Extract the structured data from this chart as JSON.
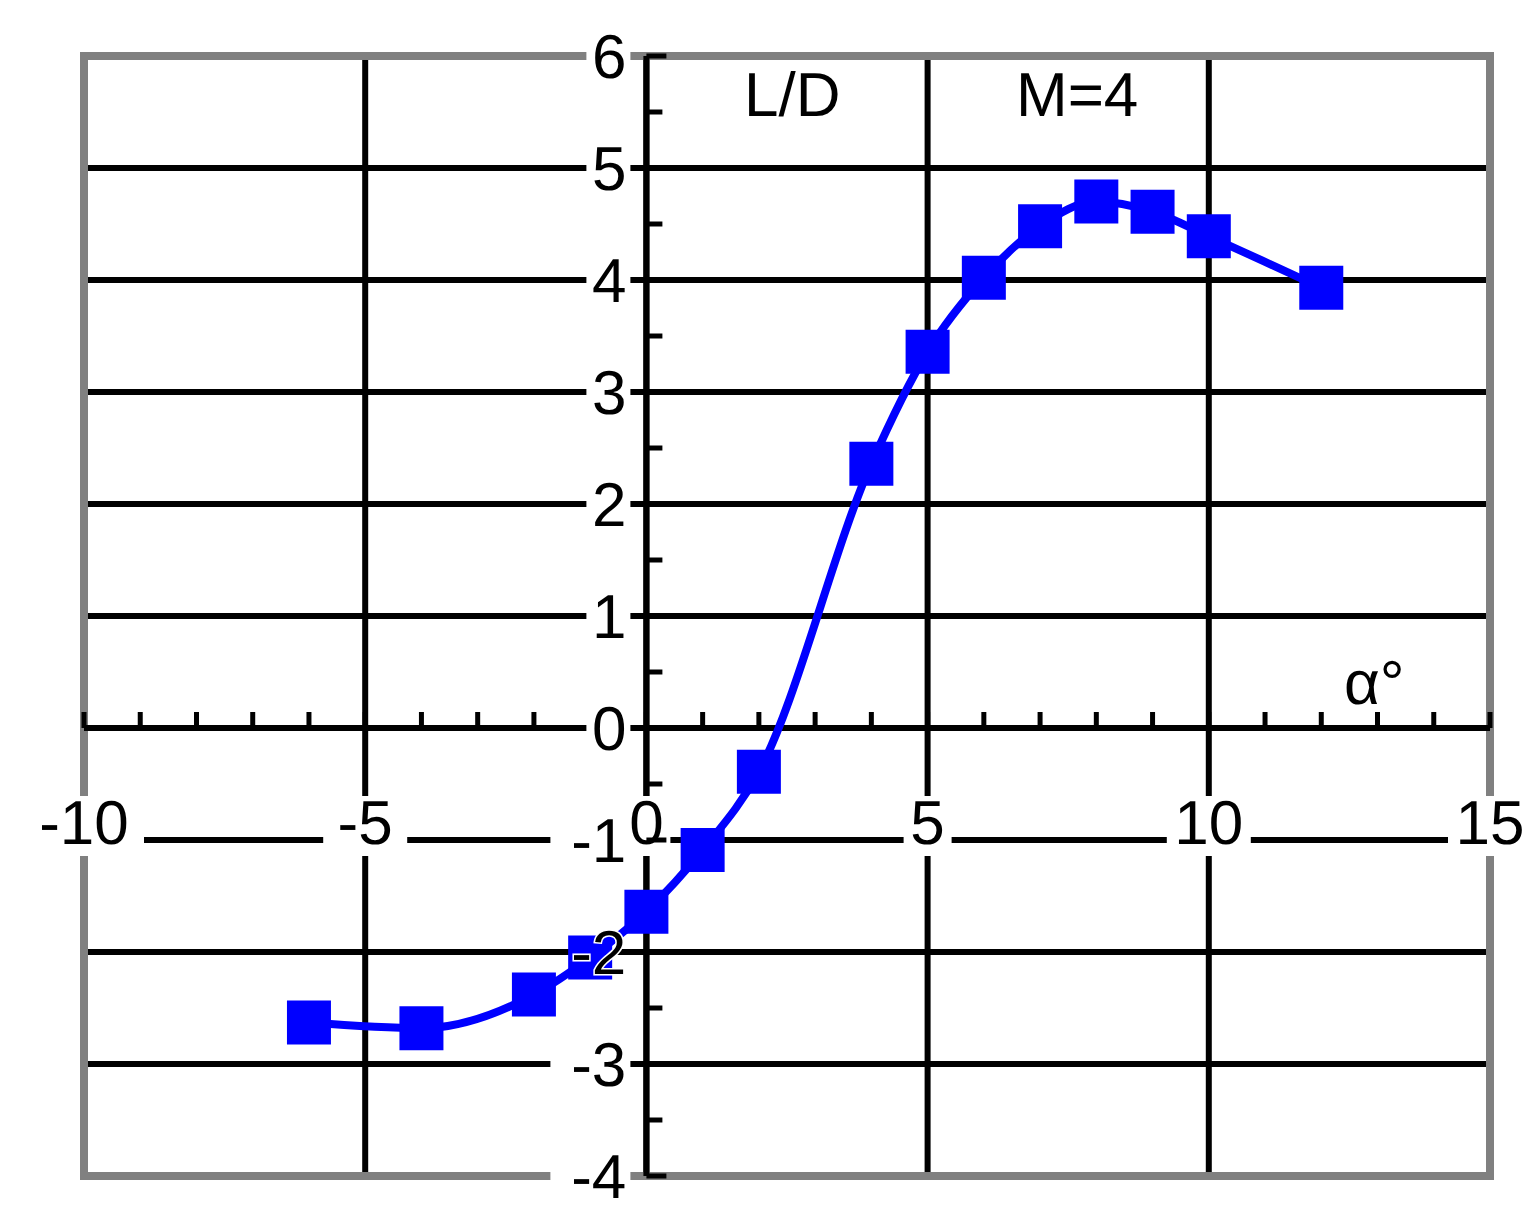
{
  "chart_data": {
    "type": "line",
    "annotations": [
      "L/D",
      "M=4",
      "α°"
    ],
    "x": [
      -6,
      -4,
      -2,
      -1,
      0,
      1,
      2,
      4,
      5,
      6,
      7,
      8,
      9,
      10,
      12
    ],
    "series": [
      {
        "color": "#0000ff",
        "values": [
          -2.63,
          -2.68,
          -2.38,
          -2.05,
          -1.64,
          -1.09,
          -0.39,
          2.36,
          3.36,
          4.02,
          4.48,
          4.7,
          4.61,
          4.39,
          3.93
        ]
      }
    ],
    "marker": "square",
    "line_style": "solid",
    "grid": true,
    "xlim": [
      -10,
      15
    ],
    "ylim": [
      -4,
      6
    ],
    "xticks": [
      -10,
      {
        "value": -9,
        "label": null
      },
      {
        "value": -8,
        "label": null
      },
      {
        "value": -7,
        "label": null
      },
      {
        "value": -6,
        "label": null
      },
      -5,
      {
        "value": -4,
        "label": null
      },
      {
        "value": -3,
        "label": null
      },
      {
        "value": -2,
        "label": null
      },
      {
        "value": -1,
        "label": null
      },
      0,
      {
        "value": 1,
        "label": null
      },
      {
        "value": 2,
        "label": null
      },
      {
        "value": 3,
        "label": null
      },
      {
        "value": 4,
        "label": null
      },
      5,
      {
        "value": 6,
        "label": null
      },
      {
        "value": 7,
        "label": null
      },
      {
        "value": 8,
        "label": null
      },
      {
        "value": 9,
        "label": null
      },
      10,
      {
        "value": 11,
        "label": null
      },
      {
        "value": 12,
        "label": null
      },
      {
        "value": 13,
        "label": null
      },
      {
        "value": 14,
        "label": null
      },
      15
    ],
    "yticks": [
      -4,
      {
        "value": -3.5,
        "label": null
      },
      -3,
      {
        "value": -2.5,
        "label": null
      },
      -2,
      {
        "value": -1.5,
        "label": null
      },
      -1,
      {
        "value": -0.5,
        "label": null
      },
      0,
      {
        "value": 0.5,
        "label": null
      },
      1,
      {
        "value": 1.5,
        "label": null
      },
      2,
      {
        "value": 2.5,
        "label": null
      },
      3,
      {
        "value": 3.5,
        "label": null
      },
      4,
      {
        "value": 4.5,
        "label": null
      },
      5,
      {
        "value": 5.5,
        "label": null
      },
      6
    ]
  }
}
